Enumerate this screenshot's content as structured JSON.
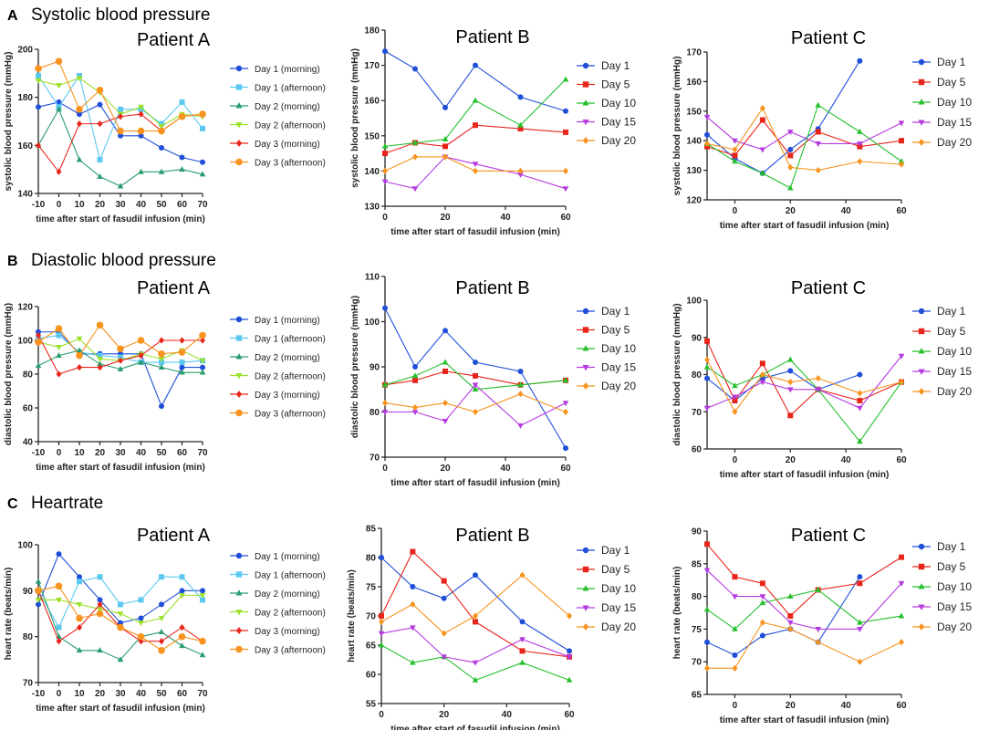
{
  "sections": [
    {
      "letter": "A",
      "title": "Systolic blood pressure"
    },
    {
      "letter": "B",
      "title": "Diastolic blood pressure"
    },
    {
      "letter": "C",
      "title": "Heartrate"
    }
  ],
  "colors": {
    "d1m": "#1f4fd8",
    "d1a": "#5bc8f0",
    "d2m": "#2a9d6f",
    "d2a": "#9be02a",
    "d3m": "#e8251b",
    "d3a": "#f7931e",
    "day1": "#1f4fd8",
    "day5": "#e8251b",
    "day10": "#25c02c",
    "day15": "#b53ae0",
    "day20": "#f7931e"
  },
  "chart_data": [
    {
      "type": "line",
      "title": "Patient A",
      "section": 0,
      "xlabel": "time after start of fasudil infusion (min)",
      "ylabel": "systolic blood pressure (mmHg)",
      "xlim": [
        -10,
        70
      ],
      "ylim": [
        140,
        200
      ],
      "xticks": [
        "-10",
        "0",
        "10",
        "20",
        "30",
        "40",
        "50",
        "60",
        "70"
      ],
      "yticks": [
        "140",
        "160",
        "180",
        "200"
      ],
      "x": [
        -10,
        0,
        10,
        20,
        30,
        40,
        50,
        60,
        70
      ],
      "series": [
        {
          "name": "Day 1 (morning)",
          "color": "d1m",
          "marker": "circle",
          "values": [
            176,
            178,
            173,
            177,
            164,
            164,
            159,
            155,
            153
          ]
        },
        {
          "name": "Day 1 (afternoon)",
          "color": "d1a",
          "marker": "square",
          "values": [
            189,
            176,
            189,
            154,
            175,
            175,
            169,
            178,
            167
          ]
        },
        {
          "name": "Day 2 (morning)",
          "color": "d2m",
          "marker": "triangle",
          "values": [
            160,
            175,
            154,
            147,
            143,
            149,
            149,
            150,
            148
          ]
        },
        {
          "name": "Day 2 (afternoon)",
          "color": "d2a",
          "marker": "triangle-down",
          "values": [
            187,
            185,
            188,
            182,
            173,
            176,
            168,
            173,
            172
          ]
        },
        {
          "name": "Day 3 (morning)",
          "color": "d3m",
          "marker": "diamond",
          "values": [
            160,
            149,
            169,
            169,
            172,
            173,
            166,
            172,
            173
          ]
        },
        {
          "name": "Day 3 (afternoon)",
          "color": "d3a",
          "marker": "circle",
          "values": [
            192,
            195,
            175,
            183,
            166,
            166,
            166,
            172,
            173
          ]
        }
      ]
    },
    {
      "type": "line",
      "title": "Patient B",
      "section": 0,
      "xlabel": "time after start of fasudil infusion (min)",
      "ylabel": "systolic blood pressure (mmHg)",
      "xlim": [
        0,
        60
      ],
      "ylim": [
        130,
        180
      ],
      "xticks": [
        "0",
        "20",
        "40",
        "60"
      ],
      "yticks": [
        "130",
        "140",
        "150",
        "160",
        "170",
        "180"
      ],
      "x": [
        0,
        10,
        20,
        30,
        45,
        60
      ],
      "series": [
        {
          "name": "Day 1",
          "color": "day1",
          "marker": "circle",
          "values": [
            174,
            169,
            158,
            170,
            161,
            157
          ]
        },
        {
          "name": "Day 5",
          "color": "day5",
          "marker": "square",
          "values": [
            145,
            148,
            147,
            153,
            152,
            151
          ]
        },
        {
          "name": "Day 10",
          "color": "day10",
          "marker": "triangle",
          "values": [
            147,
            148,
            149,
            160,
            153,
            166
          ]
        },
        {
          "name": "Day 15",
          "color": "day15",
          "marker": "triangle-down",
          "values": [
            137,
            135,
            144,
            142,
            139,
            135
          ]
        },
        {
          "name": "Day 20",
          "color": "day20",
          "marker": "diamond",
          "values": [
            140,
            144,
            144,
            140,
            140,
            140
          ]
        }
      ]
    },
    {
      "type": "line",
      "title": "Patient C",
      "section": 0,
      "xlabel": "time after start of fasudil infusion (min)",
      "ylabel": "systolic blood pressure (mmHg)",
      "xlim": [
        -10,
        60
      ],
      "ylim": [
        120,
        170
      ],
      "xticks": [
        "0",
        "20",
        "40",
        "60"
      ],
      "yticks": [
        "120",
        "130",
        "140",
        "150",
        "160",
        "170"
      ],
      "x": [
        -10,
        0,
        10,
        20,
        30,
        45,
        60
      ],
      "series": [
        {
          "name": "Day 1",
          "color": "day1",
          "marker": "circle",
          "values": [
            142,
            134,
            129,
            137,
            144,
            167,
            null
          ]
        },
        {
          "name": "Day 5",
          "color": "day5",
          "marker": "square",
          "values": [
            138,
            135,
            147,
            135,
            143,
            138,
            140
          ]
        },
        {
          "name": "Day 10",
          "color": "day10",
          "marker": "triangle",
          "values": [
            139,
            133,
            129,
            124,
            152,
            143,
            133
          ]
        },
        {
          "name": "Day 15",
          "color": "day15",
          "marker": "triangle-down",
          "values": [
            148,
            140,
            137,
            143,
            139,
            139,
            146
          ]
        },
        {
          "name": "Day 20",
          "color": "day20",
          "marker": "diamond",
          "values": [
            139,
            137,
            151,
            131,
            130,
            133,
            132
          ]
        }
      ]
    },
    {
      "type": "line",
      "title": "Patient A",
      "section": 1,
      "xlabel": "time after start of fasudil infusion (min)",
      "ylabel": "diastolic blood pressure (mmHg)",
      "xlim": [
        -10,
        70
      ],
      "ylim": [
        40,
        120
      ],
      "xticks": [
        "-10",
        "0",
        "10",
        "20",
        "30",
        "40",
        "50",
        "60",
        "70"
      ],
      "yticks": [
        "40",
        "60",
        "80",
        "100",
        "120"
      ],
      "x": [
        -10,
        0,
        10,
        20,
        30,
        40,
        50,
        60,
        70
      ],
      "series": [
        {
          "name": "Day 1 (morning)",
          "color": "d1m",
          "marker": "circle",
          "values": [
            105,
            105,
            92,
            92,
            92,
            92,
            61,
            84,
            84
          ]
        },
        {
          "name": "Day 1 (afternoon)",
          "color": "d1a",
          "marker": "square",
          "values": [
            101,
            103,
            93,
            91,
            90,
            87,
            87,
            87,
            88
          ]
        },
        {
          "name": "Day 2 (morning)",
          "color": "d2m",
          "marker": "triangle",
          "values": [
            85,
            91,
            94,
            86,
            83,
            87,
            84,
            81,
            81
          ]
        },
        {
          "name": "Day 2 (afternoon)",
          "color": "d2a",
          "marker": "triangle-down",
          "values": [
            99,
            96,
            101,
            89,
            88,
            92,
            89,
            94,
            88
          ]
        },
        {
          "name": "Day 3 (morning)",
          "color": "d3m",
          "marker": "diamond",
          "values": [
            103,
            80,
            84,
            84,
            88,
            91,
            100,
            100,
            100
          ]
        },
        {
          "name": "Day 3 (afternoon)",
          "color": "d3a",
          "marker": "circle",
          "values": [
            99,
            107,
            91,
            109,
            95,
            100,
            92,
            93,
            103
          ]
        }
      ]
    },
    {
      "type": "line",
      "title": "Patient B",
      "section": 1,
      "xlabel": "time after start of fasudil infusion (min)",
      "ylabel": "diastolic blood pressure (mmHg)",
      "xlim": [
        0,
        60
      ],
      "ylim": [
        70,
        110
      ],
      "xticks": [
        "0",
        "20",
        "40",
        "60"
      ],
      "yticks": [
        "70",
        "80",
        "90",
        "100",
        "110"
      ],
      "x": [
        0,
        10,
        20,
        30,
        45,
        60
      ],
      "series": [
        {
          "name": "Day 1",
          "color": "day1",
          "marker": "circle",
          "values": [
            103,
            90,
            98,
            91,
            89,
            72
          ]
        },
        {
          "name": "Day 5",
          "color": "day5",
          "marker": "square",
          "values": [
            86,
            87,
            89,
            88,
            86,
            87
          ]
        },
        {
          "name": "Day 10",
          "color": "day10",
          "marker": "triangle",
          "values": [
            86,
            88,
            91,
            85,
            86,
            87
          ]
        },
        {
          "name": "Day 15",
          "color": "day15",
          "marker": "triangle-down",
          "values": [
            80,
            80,
            78,
            86,
            77,
            82
          ]
        },
        {
          "name": "Day 20",
          "color": "day20",
          "marker": "diamond",
          "values": [
            82,
            81,
            82,
            80,
            84,
            80
          ]
        }
      ]
    },
    {
      "type": "line",
      "title": "Patient C",
      "section": 1,
      "xlabel": "time after start of fasudil infusion (min)",
      "ylabel": "diastolic blood pressure (mmHg)",
      "xlim": [
        -10,
        60
      ],
      "ylim": [
        60,
        100
      ],
      "xticks": [
        "0",
        "20",
        "40",
        "60"
      ],
      "yticks": [
        "60",
        "70",
        "80",
        "90",
        "100"
      ],
      "x": [
        -10,
        0,
        10,
        20,
        30,
        45,
        60
      ],
      "series": [
        {
          "name": "Day 1",
          "color": "day1",
          "marker": "circle",
          "values": [
            79,
            73,
            79,
            81,
            76,
            80,
            null
          ]
        },
        {
          "name": "Day 5",
          "color": "day5",
          "marker": "square",
          "values": [
            89,
            73,
            83,
            69,
            76,
            73,
            78
          ]
        },
        {
          "name": "Day 10",
          "color": "day10",
          "marker": "triangle",
          "values": [
            82,
            77,
            80,
            84,
            76,
            62,
            78
          ]
        },
        {
          "name": "Day 15",
          "color": "day15",
          "marker": "triangle-down",
          "values": [
            71,
            74,
            78,
            76,
            76,
            71,
            85
          ]
        },
        {
          "name": "Day 20",
          "color": "day20",
          "marker": "diamond",
          "values": [
            84,
            70,
            80,
            78,
            79,
            75,
            78
          ]
        }
      ]
    },
    {
      "type": "line",
      "title": "Patient A",
      "section": 2,
      "xlabel": "time after start of fasudil infusion (min)",
      "ylabel": "heart rate (beats/min)",
      "xlim": [
        -10,
        70
      ],
      "ylim": [
        70,
        100
      ],
      "xticks": [
        "-10",
        "0",
        "10",
        "20",
        "30",
        "40",
        "50",
        "60",
        "70"
      ],
      "yticks": [
        "70",
        "80",
        "90",
        "100"
      ],
      "x": [
        -10,
        0,
        10,
        20,
        30,
        40,
        50,
        60,
        70
      ],
      "series": [
        {
          "name": "Day 1 (morning)",
          "color": "d1m",
          "marker": "circle",
          "values": [
            87,
            98,
            93,
            88,
            83,
            84,
            87,
            90,
            90
          ]
        },
        {
          "name": "Day 1 (afternoon)",
          "color": "d1a",
          "marker": "square",
          "values": [
            90,
            82,
            92,
            93,
            87,
            88,
            93,
            93,
            88
          ]
        },
        {
          "name": "Day 2 (morning)",
          "color": "d2m",
          "marker": "triangle",
          "values": [
            92,
            80,
            77,
            77,
            75,
            80,
            81,
            78,
            76
          ]
        },
        {
          "name": "Day 2 (afternoon)",
          "color": "d2a",
          "marker": "triangle-down",
          "values": [
            88,
            88,
            87,
            86,
            85,
            83,
            84,
            89,
            89
          ]
        },
        {
          "name": "Day 3 (morning)",
          "color": "d3m",
          "marker": "diamond",
          "values": [
            90,
            79,
            82,
            87,
            82,
            79,
            79,
            82,
            79
          ]
        },
        {
          "name": "Day 3 (afternoon)",
          "color": "d3a",
          "marker": "circle",
          "values": [
            90,
            91,
            84,
            85,
            82,
            80,
            77,
            80,
            79
          ]
        }
      ]
    },
    {
      "type": "line",
      "title": "Patient B",
      "section": 2,
      "xlabel": "time after start of fasudil infusion (min)",
      "ylabel": "heart rate (beats/min)",
      "xlim": [
        0,
        60
      ],
      "ylim": [
        55,
        85
      ],
      "xticks": [
        "0",
        "20",
        "40",
        "60"
      ],
      "yticks": [
        "55",
        "60",
        "65",
        "70",
        "75",
        "80",
        "85"
      ],
      "x": [
        0,
        10,
        20,
        30,
        45,
        60
      ],
      "series": [
        {
          "name": "Day 1",
          "color": "day1",
          "marker": "circle",
          "values": [
            80,
            75,
            73,
            77,
            69,
            64
          ]
        },
        {
          "name": "Day 5",
          "color": "day5",
          "marker": "square",
          "values": [
            70,
            81,
            76,
            69,
            64,
            63
          ]
        },
        {
          "name": "Day 10",
          "color": "day10",
          "marker": "triangle",
          "values": [
            65,
            62,
            63,
            59,
            62,
            59
          ]
        },
        {
          "name": "Day 15",
          "color": "day15",
          "marker": "triangle-down",
          "values": [
            67,
            68,
            63,
            62,
            66,
            63
          ]
        },
        {
          "name": "Day 20",
          "color": "day20",
          "marker": "diamond",
          "values": [
            69,
            72,
            67,
            70,
            77,
            70
          ]
        }
      ]
    },
    {
      "type": "line",
      "title": "Patient C",
      "section": 2,
      "xlabel": "time after start of fasudil infusion (min)",
      "ylabel": "heart rate (beats/min)",
      "xlim": [
        -10,
        60
      ],
      "ylim": [
        65,
        90
      ],
      "xticks": [
        "0",
        "20",
        "40",
        "60"
      ],
      "yticks": [
        "65",
        "70",
        "75",
        "80",
        "85",
        "90"
      ],
      "x": [
        -10,
        0,
        10,
        20,
        30,
        45,
        60
      ],
      "series": [
        {
          "name": "Day 1",
          "color": "day1",
          "marker": "circle",
          "values": [
            73,
            71,
            74,
            75,
            73,
            83,
            null
          ]
        },
        {
          "name": "Day 5",
          "color": "day5",
          "marker": "square",
          "values": [
            88,
            83,
            82,
            77,
            81,
            82,
            86
          ]
        },
        {
          "name": "Day 10",
          "color": "day10",
          "marker": "triangle",
          "values": [
            78,
            75,
            79,
            80,
            81,
            76,
            77
          ]
        },
        {
          "name": "Day 15",
          "color": "day15",
          "marker": "triangle-down",
          "values": [
            84,
            80,
            80,
            76,
            75,
            75,
            82
          ]
        },
        {
          "name": "Day 20",
          "color": "day20",
          "marker": "diamond",
          "values": [
            69,
            69,
            76,
            75,
            73,
            70,
            73
          ]
        }
      ]
    }
  ]
}
